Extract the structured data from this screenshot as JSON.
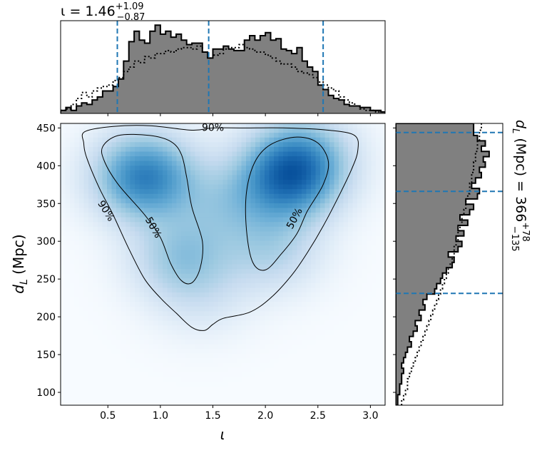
{
  "chart_data": [
    {
      "type": "heatmap",
      "name": "joint-posterior",
      "xlabel": "ι",
      "ylabel": "d_L (Mpc)",
      "ylabel_main": "d",
      "ylabel_sub": "L",
      "ylabel_rest": " (Mpc)",
      "xlim": [
        0.05,
        3.14
      ],
      "ylim": [
        83,
        456
      ],
      "xticks": [
        0.5,
        1.0,
        1.5,
        2.0,
        2.5,
        3.0
      ],
      "xtick_labels": [
        "0.5",
        "1.0",
        "1.5",
        "2.0",
        "2.5",
        "3.0"
      ],
      "yticks": [
        100,
        150,
        200,
        250,
        300,
        350,
        400,
        450
      ],
      "ytick_labels": [
        "100",
        "150",
        "200",
        "250",
        "300",
        "350",
        "400",
        "450"
      ],
      "colormap": "Blues",
      "density_modes": [
        {
          "x": 0.85,
          "y": 385,
          "weight": 1.0
        },
        {
          "x": 1.2,
          "y": 280,
          "weight": 0.45
        },
        {
          "x": 2.2,
          "y": 380,
          "weight": 0.85
        },
        {
          "x": 2.35,
          "y": 410,
          "weight": 0.6
        },
        {
          "x": 2.05,
          "y": 290,
          "weight": 0.35
        },
        {
          "x": 1.6,
          "y": 350,
          "weight": 0.3
        },
        {
          "x": 1.4,
          "y": 230,
          "weight": 0.15
        }
      ],
      "contours": [
        {
          "label": "90%",
          "label_x": 1.5,
          "label_y": 450,
          "points": [
            [
              0.28,
              445
            ],
            [
              0.55,
              452
            ],
            [
              0.9,
              453
            ],
            [
              1.3,
              447
            ],
            [
              1.5,
              450
            ],
            [
              1.8,
              450
            ],
            [
              2.2,
              450
            ],
            [
              2.6,
              447
            ],
            [
              2.85,
              440
            ],
            [
              2.88,
              420
            ],
            [
              2.82,
              395
            ],
            [
              2.7,
              360
            ],
            [
              2.55,
              320
            ],
            [
              2.4,
              285
            ],
            [
              2.25,
              255
            ],
            [
              2.05,
              225
            ],
            [
              1.85,
              206
            ],
            [
              1.6,
              198
            ],
            [
              1.5,
              190
            ],
            [
              1.42,
              182
            ],
            [
              1.3,
              186
            ],
            [
              1.15,
              205
            ],
            [
              1.0,
              225
            ],
            [
              0.85,
              250
            ],
            [
              0.7,
              290
            ],
            [
              0.55,
              335
            ],
            [
              0.42,
              370
            ],
            [
              0.3,
              410
            ],
            [
              0.27,
              430
            ]
          ]
        },
        {
          "label": "90%",
          "label_x": 0.48,
          "label_y": 340,
          "points": []
        },
        {
          "label": "50%",
          "points": [
            [
              0.45,
              425
            ],
            [
              0.6,
              440
            ],
            [
              0.9,
              440
            ],
            [
              1.1,
              432
            ],
            [
              1.2,
              415
            ],
            [
              1.25,
              385
            ],
            [
              1.3,
              345
            ],
            [
              1.4,
              300
            ],
            [
              1.38,
              265
            ],
            [
              1.3,
              245
            ],
            [
              1.2,
              248
            ],
            [
              1.1,
              270
            ],
            [
              1.0,
              305
            ],
            [
              0.85,
              335
            ],
            [
              0.6,
              375
            ],
            [
              0.47,
              405
            ]
          ],
          "label_x": 0.93,
          "label_y": 318
        },
        {
          "label": "50%",
          "points": [
            [
              1.9,
              405
            ],
            [
              2.05,
              428
            ],
            [
              2.3,
              438
            ],
            [
              2.5,
              430
            ],
            [
              2.6,
              405
            ],
            [
              2.55,
              375
            ],
            [
              2.4,
              340
            ],
            [
              2.3,
              310
            ],
            [
              2.15,
              283
            ],
            [
              2.0,
              262
            ],
            [
              1.88,
              272
            ],
            [
              1.82,
              315
            ],
            [
              1.82,
              365
            ]
          ],
          "label_x": 2.28,
          "label_y": 330
        }
      ]
    },
    {
      "type": "bar",
      "name": "inclination-marginal",
      "title_main": "ι = 1.46",
      "title_sup": "+1.09",
      "title_sub": "−0.87",
      "xlim": [
        0.05,
        3.14
      ],
      "ylim": [
        0,
        0.62
      ],
      "bin_edges": [
        0.05,
        0.1,
        0.15,
        0.2,
        0.25,
        0.3,
        0.35,
        0.4,
        0.45,
        0.5,
        0.55,
        0.6,
        0.65,
        0.7,
        0.75,
        0.8,
        0.85,
        0.9,
        0.95,
        1.0,
        1.05,
        1.1,
        1.15,
        1.2,
        1.25,
        1.3,
        1.35,
        1.4,
        1.45,
        1.5,
        1.55,
        1.6,
        1.65,
        1.7,
        1.75,
        1.8,
        1.85,
        1.9,
        1.95,
        2.0,
        2.05,
        2.1,
        2.15,
        2.2,
        2.25,
        2.3,
        2.35,
        2.4,
        2.45,
        2.5,
        2.55,
        2.6,
        2.65,
        2.7,
        2.75,
        2.8,
        2.85,
        2.9,
        2.95,
        3.0,
        3.05,
        3.1,
        3.14
      ],
      "filled_counts": [
        0.02,
        0.04,
        0.02,
        0.05,
        0.07,
        0.06,
        0.09,
        0.11,
        0.15,
        0.15,
        0.18,
        0.23,
        0.35,
        0.48,
        0.55,
        0.49,
        0.47,
        0.55,
        0.59,
        0.53,
        0.55,
        0.51,
        0.53,
        0.49,
        0.46,
        0.47,
        0.47,
        0.41,
        0.37,
        0.43,
        0.43,
        0.45,
        0.43,
        0.42,
        0.42,
        0.49,
        0.52,
        0.49,
        0.52,
        0.54,
        0.49,
        0.5,
        0.43,
        0.42,
        0.4,
        0.44,
        0.35,
        0.31,
        0.28,
        0.19,
        0.16,
        0.12,
        0.1,
        0.09,
        0.06,
        0.05,
        0.05,
        0.04,
        0.04,
        0.02,
        0.02,
        0.01
      ],
      "prior_counts": [
        0.02,
        0.03,
        0.06,
        0.1,
        0.14,
        0.11,
        0.15,
        0.17,
        0.18,
        0.19,
        0.22,
        0.24,
        0.28,
        0.31,
        0.35,
        0.34,
        0.38,
        0.37,
        0.4,
        0.4,
        0.42,
        0.41,
        0.43,
        0.44,
        0.44,
        0.43,
        0.45,
        0.41,
        0.37,
        0.39,
        0.4,
        0.43,
        0.44,
        0.44,
        0.46,
        0.44,
        0.43,
        0.41,
        0.41,
        0.39,
        0.37,
        0.35,
        0.33,
        0.33,
        0.31,
        0.28,
        0.27,
        0.26,
        0.24,
        0.21,
        0.19,
        0.17,
        0.15,
        0.11,
        0.09,
        0.07,
        0.05,
        0.03,
        0.02,
        0.02,
        0.01,
        0.01
      ],
      "quantile_lines": [
        0.59,
        1.46,
        2.55
      ],
      "fill_color": "#808080",
      "line_color": "#1f77b4"
    },
    {
      "type": "bar",
      "name": "distance-marginal",
      "title_main": "d",
      "title_sub_L": "L",
      "title_rest": " (Mpc) = 366",
      "title_sup": "+78",
      "title_sub": "−135",
      "ylim": [
        83,
        456
      ],
      "xlim": [
        0,
        0.0055
      ],
      "bin_edges": [
        83,
        90,
        97,
        104,
        111,
        118,
        125,
        132,
        139,
        146,
        153,
        160,
        167,
        174,
        181,
        188,
        195,
        202,
        209,
        216,
        223,
        230,
        237,
        244,
        251,
        258,
        265,
        272,
        279,
        286,
        293,
        300,
        307,
        314,
        321,
        328,
        335,
        342,
        349,
        356,
        363,
        370,
        377,
        384,
        391,
        398,
        405,
        412,
        419,
        426,
        433,
        440,
        447,
        456
      ],
      "filled_counts": [
        0.0001,
        0.0001,
        0.0002,
        0.0002,
        0.0003,
        0.0003,
        0.0004,
        0.0003,
        0.0004,
        0.0005,
        0.0006,
        0.0008,
        0.0007,
        0.0009,
        0.0011,
        0.001,
        0.0013,
        0.0012,
        0.0015,
        0.0014,
        0.0016,
        0.002,
        0.0021,
        0.0023,
        0.0024,
        0.0026,
        0.0029,
        0.003,
        0.0027,
        0.0032,
        0.0034,
        0.0031,
        0.0035,
        0.0032,
        0.0037,
        0.0033,
        0.0038,
        0.004,
        0.0036,
        0.0042,
        0.0043,
        0.0039,
        0.0041,
        0.0044,
        0.0043,
        0.0046,
        0.0045,
        0.0048,
        0.0044,
        0.0046,
        0.0042,
        0.004,
        0.004
      ],
      "prior_counts": [
        0.0003,
        0.0004,
        0.0005,
        0.0006,
        0.0006,
        0.0007,
        0.0008,
        0.0009,
        0.001,
        0.0011,
        0.0012,
        0.0013,
        0.0014,
        0.0015,
        0.0016,
        0.0017,
        0.0018,
        0.0019,
        0.002,
        0.0021,
        0.0022,
        0.0023,
        0.0024,
        0.0025,
        0.0026,
        0.0027,
        0.0028,
        0.0029,
        0.003,
        0.003,
        0.0031,
        0.0032,
        0.0032,
        0.0033,
        0.0034,
        0.0034,
        0.0035,
        0.0036,
        0.0036,
        0.0037,
        0.0038,
        0.0038,
        0.0039,
        0.0039,
        0.004,
        0.004,
        0.0041,
        0.0041,
        0.0042,
        0.0042,
        0.0043,
        0.0043,
        0.0044
      ],
      "quantile_lines": [
        231,
        366,
        444
      ],
      "fill_color": "#808080",
      "line_color": "#1f77b4"
    }
  ]
}
